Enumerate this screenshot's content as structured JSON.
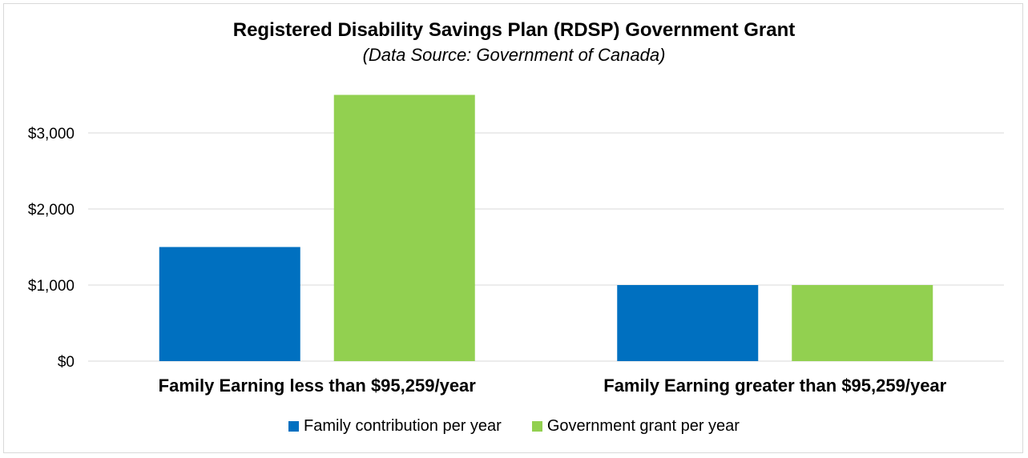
{
  "chart_data": {
    "type": "bar",
    "title": "Registered Disability Savings Plan (RDSP) Government Grant",
    "subtitle": "(Data Source: Government of Canada)",
    "categories": [
      "Family Earning less than $95,259/year",
      "Family Earning greater than $95,259/year"
    ],
    "series": [
      {
        "name": "Family contribution per year",
        "values": [
          1500,
          1000
        ],
        "color": "#0070c0"
      },
      {
        "name": "Government grant per year",
        "values": [
          3500,
          1000
        ],
        "color": "#92d050"
      }
    ],
    "y_ticks": [
      {
        "value": 0,
        "label": "$0"
      },
      {
        "value": 1000,
        "label": "$1,000"
      },
      {
        "value": 2000,
        "label": "$2,000"
      },
      {
        "value": 3000,
        "label": "$3,000"
      }
    ],
    "ylim": [
      0,
      3500
    ],
    "grid": true,
    "legend_position": "bottom",
    "xlabel": "",
    "ylabel": ""
  }
}
